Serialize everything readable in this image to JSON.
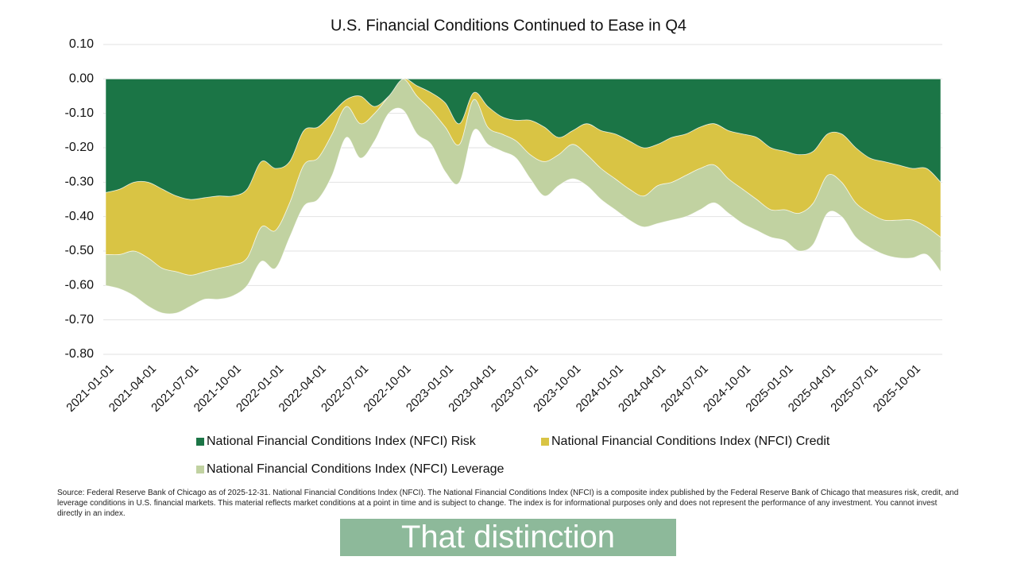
{
  "chart_data": {
    "type": "stacked_area",
    "title": "U.S. Financial Conditions Continued to Ease in Q4",
    "x": [
      "2021-01-01",
      "2021-02-01",
      "2021-03-01",
      "2021-04-01",
      "2021-05-01",
      "2021-06-01",
      "2021-07-01",
      "2021-08-01",
      "2021-09-01",
      "2021-10-01",
      "2021-11-01",
      "2021-12-01",
      "2022-01-01",
      "2022-02-01",
      "2022-03-01",
      "2022-04-01",
      "2022-05-01",
      "2022-06-01",
      "2022-07-01",
      "2022-08-01",
      "2022-09-01",
      "2022-10-01",
      "2022-11-01",
      "2022-12-01",
      "2023-01-01",
      "2023-02-01",
      "2023-03-01",
      "2023-04-01",
      "2023-05-01",
      "2023-06-01",
      "2023-07-01",
      "2023-08-01",
      "2023-09-01",
      "2023-10-01",
      "2023-11-01",
      "2023-12-01",
      "2024-01-01",
      "2024-02-01",
      "2024-03-01",
      "2024-04-01",
      "2024-05-01",
      "2024-06-01",
      "2024-07-01",
      "2024-08-01",
      "2024-09-01",
      "2024-10-01",
      "2024-11-01",
      "2024-12-01",
      "2025-01-01",
      "2025-02-01",
      "2025-03-01",
      "2025-04-01",
      "2025-05-01",
      "2025-06-01",
      "2025-07-01",
      "2025-08-01",
      "2025-09-01",
      "2025-10-01",
      "2025-11-01",
      "2025-12-01"
    ],
    "xticks": [
      "2021-01-01",
      "2021-04-01",
      "2021-07-01",
      "2021-10-01",
      "2022-01-01",
      "2022-04-01",
      "2022-07-01",
      "2022-10-01",
      "2023-01-01",
      "2023-04-01",
      "2023-07-01",
      "2023-10-01",
      "2024-01-01",
      "2024-04-01",
      "2024-07-01",
      "2024-10-01",
      "2025-01-01",
      "2025-04-01",
      "2025-07-01",
      "2025-10-01"
    ],
    "series": [
      {
        "name": "National Financial Conditions Index (NFCI) Risk",
        "color": "#1b7546",
        "values": [
          -0.33,
          -0.32,
          -0.3,
          -0.3,
          -0.32,
          -0.34,
          -0.35,
          -0.345,
          -0.34,
          -0.34,
          -0.32,
          -0.24,
          -0.26,
          -0.24,
          -0.15,
          -0.14,
          -0.1,
          -0.06,
          -0.05,
          -0.08,
          -0.05,
          0,
          -0.02,
          -0.04,
          -0.07,
          -0.13,
          -0.04,
          -0.08,
          -0.11,
          -0.12,
          -0.12,
          -0.14,
          -0.17,
          -0.15,
          -0.13,
          -0.15,
          -0.16,
          -0.18,
          -0.2,
          -0.19,
          -0.17,
          -0.16,
          -0.14,
          -0.13,
          -0.15,
          -0.16,
          -0.17,
          -0.2,
          -0.21,
          -0.22,
          -0.21,
          -0.16,
          -0.16,
          -0.2,
          -0.23,
          -0.24,
          -0.25,
          -0.26,
          -0.26,
          -0.3
        ]
      },
      {
        "name": "National Financial Conditions Index (NFCI) Credit",
        "color": "#d9c444",
        "values": [
          -0.18,
          -0.19,
          -0.2,
          -0.22,
          -0.23,
          -0.22,
          -0.22,
          -0.215,
          -0.21,
          -0.2,
          -0.2,
          -0.19,
          -0.18,
          -0.12,
          -0.1,
          -0.09,
          -0.06,
          -0.02,
          -0.08,
          -0.02,
          0,
          0,
          -0.03,
          -0.05,
          -0.07,
          -0.06,
          -0.02,
          -0.06,
          -0.05,
          -0.06,
          -0.1,
          -0.1,
          -0.05,
          -0.04,
          -0.09,
          -0.11,
          -0.13,
          -0.14,
          -0.14,
          -0.12,
          -0.13,
          -0.12,
          -0.12,
          -0.12,
          -0.14,
          -0.16,
          -0.18,
          -0.18,
          -0.17,
          -0.17,
          -0.15,
          -0.12,
          -0.14,
          -0.16,
          -0.16,
          -0.17,
          -0.16,
          -0.15,
          -0.17,
          -0.16
        ]
      },
      {
        "name": "National Financial Conditions Index (NFCI) Leverage",
        "color": "#c1d2a1",
        "values": [
          -0.09,
          -0.1,
          -0.13,
          -0.14,
          -0.13,
          -0.12,
          -0.09,
          -0.08,
          -0.09,
          -0.09,
          -0.08,
          -0.1,
          -0.11,
          -0.1,
          -0.12,
          -0.12,
          -0.12,
          -0.09,
          -0.1,
          -0.08,
          -0.05,
          -0.09,
          -0.11,
          -0.1,
          -0.13,
          -0.11,
          -0.09,
          -0.05,
          -0.05,
          -0.05,
          -0.07,
          -0.1,
          -0.09,
          -0.1,
          -0.09,
          -0.09,
          -0.09,
          -0.09,
          -0.09,
          -0.11,
          -0.11,
          -0.12,
          -0.12,
          -0.11,
          -0.1,
          -0.1,
          -0.09,
          -0.08,
          -0.09,
          -0.11,
          -0.12,
          -0.11,
          -0.1,
          -0.1,
          -0.1,
          -0.1,
          -0.11,
          -0.11,
          -0.08,
          -0.1
        ]
      }
    ],
    "ylim": [
      -0.8,
      0.1
    ],
    "yticks": [
      {
        "value": 0.1,
        "label": "0.10"
      },
      {
        "value": 0,
        "label": "0.00"
      },
      {
        "value": -0.1,
        "label": "-0.10"
      },
      {
        "value": -0.2,
        "label": "-0.20"
      },
      {
        "value": -0.3,
        "label": "-0.30"
      },
      {
        "value": -0.4,
        "label": "-0.40"
      },
      {
        "value": -0.5,
        "label": "-0.50"
      },
      {
        "value": -0.6,
        "label": "-0.60"
      },
      {
        "value": -0.7,
        "label": "-0.70"
      },
      {
        "value": -0.8,
        "label": "-0.80"
      }
    ],
    "grid": true,
    "legend": "bottom",
    "source": "Source: Federal Reserve Bank of Chicago as of 2025-12-31. National Financial Conditions Index (NFCI). The National Financial Conditions Index (NFCI) is a composite index published by the Federal Reserve Bank of Chicago that measures risk, credit, and leverage conditions in U.S. financial markets. This material reflects market conditions at a point in time and is subject to change. The index is for informational purposes only and does not represent the performance of any investment. You cannot invest directly in an index."
  },
  "caption": "That distinction matters."
}
